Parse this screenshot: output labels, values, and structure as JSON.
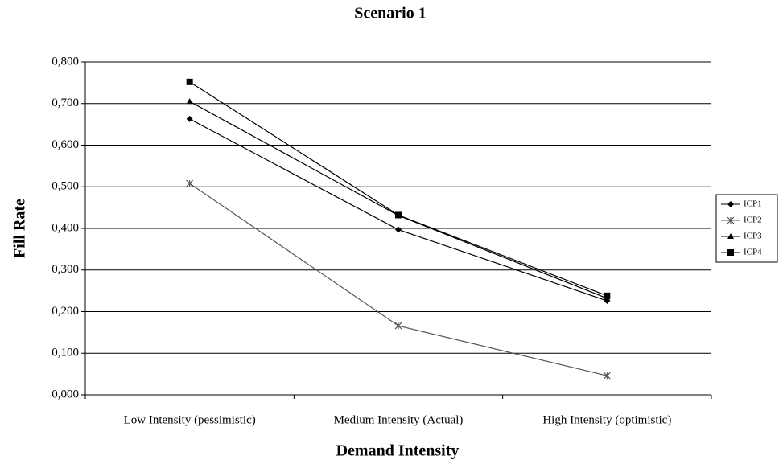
{
  "chart_data": {
    "type": "line",
    "title": "Scenario 1",
    "x_label": "Demand Intensity",
    "y_label": "Fill Rate",
    "categories": [
      "Low Intensity (pessimistic)",
      "Medium Intensity (Actual)",
      "High Intensity (optimistic)"
    ],
    "series": [
      {
        "name": "ICP1",
        "color": "#000000",
        "marker": "diamond",
        "values": [
          0.663,
          0.397,
          0.226
        ]
      },
      {
        "name": "ICP2",
        "color": "#555555",
        "marker": "asterisk",
        "values": [
          0.508,
          0.166,
          0.046
        ]
      },
      {
        "name": "ICP3",
        "color": "#000000",
        "marker": "triangle",
        "values": [
          0.705,
          0.431,
          0.232
        ]
      },
      {
        "name": "ICP4",
        "color": "#000000",
        "marker": "square",
        "values": [
          0.752,
          0.432,
          0.238
        ]
      }
    ],
    "ylim": [
      0,
      0.8
    ],
    "yticks": [
      {
        "value": 0,
        "label": "0,000"
      },
      {
        "value": 0.1,
        "label": "0,100"
      },
      {
        "value": 0.2,
        "label": "0,200"
      },
      {
        "value": 0.3,
        "label": "0,300"
      },
      {
        "value": 0.4,
        "label": "0,400"
      },
      {
        "value": 0.5,
        "label": "0,500"
      },
      {
        "value": 0.6,
        "label": "0,600"
      },
      {
        "value": 0.7,
        "label": "0,700"
      },
      {
        "value": 0.8,
        "label": "0,800"
      }
    ],
    "grid": true,
    "legend": "right"
  }
}
